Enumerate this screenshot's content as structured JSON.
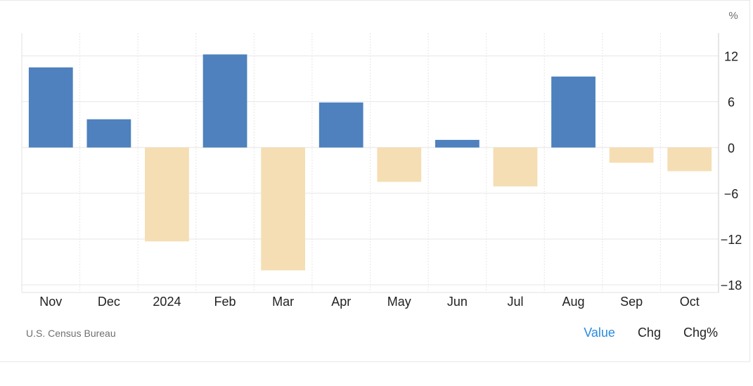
{
  "chart_data": {
    "type": "bar",
    "unit_label": "%",
    "categories": [
      "Nov",
      "Dec",
      "2024",
      "Feb",
      "Mar",
      "Apr",
      "May",
      "Jun",
      "Jul",
      "Aug",
      "Sep",
      "Oct"
    ],
    "values": [
      10.5,
      3.7,
      -12.3,
      12.2,
      -16.1,
      5.9,
      -4.5,
      1.0,
      -5.1,
      9.3,
      -2.0,
      -3.1
    ],
    "ylim": [
      -19,
      15
    ],
    "yticks": [
      12,
      6,
      0,
      -6,
      -12,
      -18
    ],
    "grid": true,
    "colors": {
      "positive": "#4e81bd",
      "negative": "#f5deb3",
      "grid": "#e6e6e6",
      "axis": "#cccccc"
    }
  },
  "footer": {
    "source": "U.S. Census Bureau",
    "tabs": [
      {
        "label": "Value",
        "active": true
      },
      {
        "label": "Chg",
        "active": false
      },
      {
        "label": "Chg%",
        "active": false
      }
    ]
  }
}
